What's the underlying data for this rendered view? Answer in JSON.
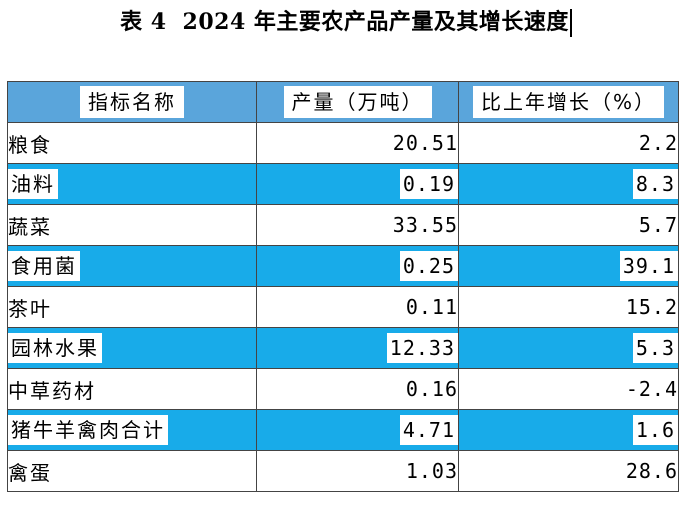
{
  "title": {
    "label": "表 4",
    "text": "2024 年主要农产品产量及其增长速度"
  },
  "table": {
    "headers": [
      "指标名称",
      "产量（万吨）",
      "比上年增长（%）"
    ],
    "rows": [
      {
        "name": "粮食",
        "output": "20.51",
        "growth": "2.2"
      },
      {
        "name": "油料",
        "output": "0.19",
        "growth": "8.3"
      },
      {
        "name": "蔬菜",
        "output": "33.55",
        "growth": "5.7"
      },
      {
        "name": "食用菌",
        "output": "0.25",
        "growth": "39.1"
      },
      {
        "name": "茶叶",
        "output": "0.11",
        "growth": "15.2"
      },
      {
        "name": "园林水果",
        "output": "12.33",
        "growth": "5.3"
      },
      {
        "name": "中草药材",
        "output": "0.16",
        "growth": "-2.4"
      },
      {
        "name": "猪牛羊禽肉合计",
        "output": "4.71",
        "growth": "1.6"
      },
      {
        "name": "禽蛋",
        "output": "1.03",
        "growth": "28.6"
      }
    ]
  },
  "colors": {
    "header_bg": "#5aa5db",
    "alt_row_bg": "#18abe9",
    "text": "#000000"
  }
}
